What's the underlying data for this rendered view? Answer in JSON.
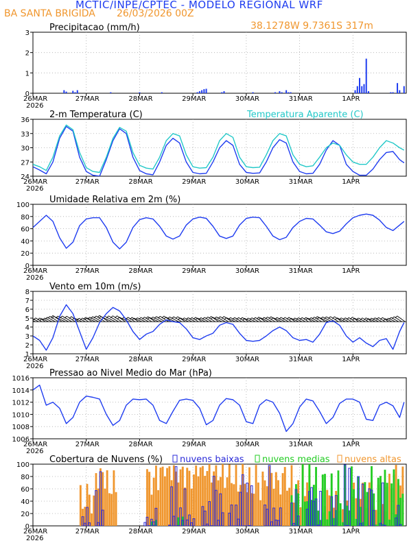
{
  "header": {
    "title": "MCTIC/INPE/CPTEC - MODELO REGIONAL WRF",
    "location": "BA SANTA BRIGIDA",
    "run": "26/03/2026 00Z",
    "coords": "38.1278W  9.7361S  317m"
  },
  "colors": {
    "line": "#1e3cf0",
    "apparent": "#22c8c8",
    "orange": "#f0962d",
    "green": "#22cc22",
    "low": "#2a2ad8",
    "grid": "#aaaaaa"
  },
  "x_axis": {
    "labels": [
      "26MAR",
      "27MAR",
      "28MAR",
      "29MAR",
      "30MAR",
      "31MAR",
      "1APR"
    ],
    "year": "2026",
    "hours": 168
  },
  "chart_data": [
    {
      "id": "precip",
      "type": "bar",
      "title": "Precipitacao (mm/h)",
      "ylim": [
        0,
        3
      ],
      "yticks": [
        0,
        1,
        2,
        3
      ],
      "hours": [
        14,
        15,
        18,
        19,
        20,
        35,
        48,
        58,
        74,
        75,
        76,
        77,
        78,
        85,
        86,
        99,
        109,
        111,
        112,
        114,
        115,
        116,
        145,
        146,
        147,
        148,
        149,
        150,
        151,
        161,
        162,
        164,
        165,
        167
      ],
      "values": [
        0.15,
        0.08,
        0.12,
        0.05,
        0.15,
        0.05,
        0.05,
        0.05,
        0.05,
        0.1,
        0.15,
        0.2,
        0.22,
        0.05,
        0.1,
        0.05,
        0.05,
        0.1,
        0.05,
        0.15,
        0.05,
        0.05,
        0.15,
        0.35,
        0.75,
        0.35,
        0.45,
        1.7,
        0.1,
        0.05,
        0.05,
        0.5,
        0.15,
        0.35
      ]
    },
    {
      "id": "temp",
      "type": "line",
      "title": "2-m Temperatura (C)",
      "legend_secondary": "Temperatura Aparente (C)",
      "ylim": [
        24,
        36
      ],
      "yticks": [
        24,
        27,
        30,
        33,
        36
      ],
      "series": [
        {
          "name": "2-m Temperatura (C)",
          "x": [
            0,
            3,
            6,
            9,
            12,
            15,
            18,
            21,
            24,
            27,
            30,
            33,
            36,
            39,
            42,
            45,
            48,
            51,
            54,
            57,
            60,
            63,
            66,
            69,
            72,
            75,
            78,
            81,
            84,
            87,
            90,
            93,
            96,
            99,
            102,
            105,
            108,
            111,
            114,
            117,
            120,
            123,
            126,
            129,
            132,
            135,
            138,
            141,
            144,
            147,
            150,
            153,
            156,
            159,
            162,
            165,
            167
          ],
          "values": [
            26,
            25.3,
            24.5,
            27,
            32,
            34.5,
            33.5,
            28,
            25,
            24.2,
            24,
            27.5,
            31.5,
            34,
            33,
            28,
            25.2,
            24.5,
            24.3,
            27,
            30.5,
            32,
            31,
            27,
            24.8,
            24.5,
            24.6,
            27,
            30,
            31.5,
            30.5,
            26.5,
            24.8,
            24.6,
            24.7,
            27,
            30,
            31.7,
            31,
            27,
            25,
            24.5,
            24.6,
            26.5,
            29.5,
            31.5,
            30.5,
            26.5,
            25,
            24.2,
            24.2,
            25.5,
            27.5,
            29,
            29.2,
            27.5,
            26.8
          ]
        },
        {
          "name": "Temperatura Aparente (C)",
          "x": [
            0,
            3,
            6,
            9,
            12,
            15,
            18,
            21,
            24,
            27,
            30,
            33,
            36,
            39,
            42,
            45,
            48,
            51,
            54,
            57,
            60,
            63,
            66,
            69,
            72,
            75,
            78,
            81,
            84,
            87,
            90,
            93,
            96,
            99,
            102,
            105,
            108,
            111,
            114,
            117,
            120,
            123,
            126,
            129,
            132,
            135,
            138,
            141,
            144,
            147,
            150,
            153,
            156,
            159,
            162,
            165,
            167
          ],
          "values": [
            26.5,
            26,
            25.2,
            28,
            32.5,
            34.8,
            33.8,
            29,
            25.8,
            25,
            24.8,
            28,
            32,
            34.3,
            33.5,
            29,
            26.3,
            25.7,
            25.5,
            28,
            31.5,
            33,
            32.5,
            28.5,
            26,
            25.7,
            25.8,
            28,
            31.5,
            33,
            32.2,
            28,
            26,
            25.8,
            25.9,
            28.5,
            31.5,
            33,
            32.5,
            28.5,
            26.5,
            26,
            26.2,
            28,
            30,
            31,
            30.5,
            28.5,
            27,
            26.5,
            26.5,
            28,
            30,
            31.5,
            31,
            30,
            29.5
          ]
        }
      ]
    },
    {
      "id": "humidity",
      "type": "line",
      "title": "Umidade Relativa em 2m (%)",
      "ylim": [
        0,
        100
      ],
      "yticks": [
        0,
        20,
        40,
        60,
        80,
        100
      ],
      "series": [
        {
          "name": "Umidade Relativa em 2m (%)",
          "x": [
            0,
            3,
            6,
            9,
            12,
            15,
            18,
            21,
            24,
            27,
            30,
            33,
            36,
            39,
            42,
            45,
            48,
            51,
            54,
            57,
            60,
            63,
            66,
            69,
            72,
            75,
            78,
            81,
            84,
            87,
            90,
            93,
            96,
            99,
            102,
            105,
            108,
            111,
            114,
            117,
            120,
            123,
            126,
            129,
            132,
            135,
            138,
            141,
            144,
            147,
            150,
            153,
            156,
            159,
            162,
            165,
            167
          ],
          "values": [
            62,
            72,
            82,
            72,
            45,
            28,
            38,
            65,
            76,
            78,
            78,
            62,
            38,
            27,
            38,
            62,
            75,
            78,
            76,
            64,
            48,
            43,
            48,
            66,
            76,
            79,
            77,
            64,
            48,
            44,
            48,
            66,
            77,
            79,
            78,
            64,
            48,
            42,
            46,
            62,
            72,
            77,
            76,
            66,
            55,
            52,
            56,
            68,
            78,
            82,
            84,
            82,
            74,
            62,
            57,
            66,
            72
          ]
        }
      ]
    },
    {
      "id": "wind",
      "type": "line",
      "title": "Vento em 10m (m/s)",
      "ylim": [
        1,
        8
      ],
      "yticks": [
        1,
        2,
        3,
        4,
        5,
        6,
        7,
        8
      ],
      "barbs_level": 4.6,
      "series": [
        {
          "name": "Vento em 10m (m/s)",
          "x": [
            0,
            3,
            6,
            9,
            12,
            15,
            18,
            21,
            24,
            27,
            30,
            33,
            36,
            39,
            42,
            45,
            48,
            51,
            54,
            57,
            60,
            63,
            66,
            69,
            72,
            75,
            78,
            81,
            84,
            87,
            90,
            93,
            96,
            99,
            102,
            105,
            108,
            111,
            114,
            117,
            120,
            123,
            126,
            129,
            132,
            135,
            138,
            141,
            144,
            147,
            150,
            153,
            156,
            159,
            162,
            165,
            167
          ],
          "values": [
            3,
            2.5,
            1.4,
            2.8,
            5.2,
            6.5,
            5.5,
            3.5,
            1.5,
            2.8,
            4.5,
            5.5,
            6.2,
            5.8,
            4.8,
            3.5,
            2.6,
            3.2,
            3.5,
            4.3,
            4.8,
            4.6,
            4.5,
            3.8,
            2.8,
            2.6,
            3,
            3.3,
            4.2,
            4.5,
            4.3,
            3.3,
            2.5,
            2.4,
            2.5,
            3,
            3.6,
            4,
            3.6,
            2.8,
            2.5,
            2.6,
            2.3,
            3.2,
            4.5,
            4.7,
            4.2,
            3,
            2.3,
            2.8,
            2.2,
            1.8,
            2.5,
            2.7,
            1.5,
            3.5,
            4.5
          ]
        }
      ]
    },
    {
      "id": "pressure",
      "type": "line",
      "title": "Pressao ao Nivel Medio do Mar (hPa)",
      "ylim": [
        1006,
        1016
      ],
      "yticks": [
        1006,
        1008,
        1010,
        1012,
        1014,
        1016
      ],
      "series": [
        {
          "name": "Pressao ao Nivel Medio do Mar (hPa)",
          "x": [
            0,
            3,
            6,
            9,
            12,
            15,
            18,
            21,
            24,
            27,
            30,
            33,
            36,
            39,
            42,
            45,
            48,
            51,
            54,
            57,
            60,
            63,
            66,
            69,
            72,
            75,
            78,
            81,
            84,
            87,
            90,
            93,
            96,
            99,
            102,
            105,
            108,
            111,
            114,
            117,
            120,
            123,
            126,
            129,
            132,
            135,
            138,
            141,
            144,
            147,
            150,
            153,
            156,
            159,
            162,
            165,
            167
          ],
          "values": [
            1014,
            1014.8,
            1011.5,
            1012,
            1011,
            1008.5,
            1009.5,
            1012,
            1013,
            1012.8,
            1012.5,
            1010,
            1008.2,
            1009,
            1011.5,
            1012.5,
            1012.4,
            1012.5,
            1011.5,
            1009,
            1008.5,
            1010.5,
            1012.3,
            1012.5,
            1012.3,
            1011,
            1008.3,
            1009,
            1011.5,
            1012.6,
            1012.4,
            1011.5,
            1008.8,
            1008.5,
            1011.5,
            1012.4,
            1012,
            1010.2,
            1007.2,
            1008.5,
            1011.2,
            1012.5,
            1012.2,
            1010.5,
            1008.5,
            1009.5,
            1011.8,
            1012.5,
            1012.5,
            1012,
            1009.2,
            1009,
            1011.5,
            1012,
            1011.4,
            1009.5,
            1012
          ]
        }
      ]
    },
    {
      "id": "clouds",
      "type": "bar",
      "title": "Cobertura de Nuvens (%)",
      "ylim": [
        0,
        100
      ],
      "yticks": [
        0,
        20,
        40,
        60,
        80,
        100
      ],
      "legend": [
        "nuvens baixas",
        "nuvens medias",
        "nuvens altas"
      ],
      "series": [
        {
          "name": "nuvens altas",
          "segments": [
            [
              21,
              28,
              20,
              70
            ],
            [
              28,
              33,
              60,
              100
            ],
            [
              33,
              38,
              40,
              90
            ],
            [
              51,
              57,
              50,
              100
            ],
            [
              57,
              62,
              80,
              100
            ],
            [
              62,
              68,
              70,
              100
            ],
            [
              68,
              74,
              60,
              100
            ],
            [
              74,
              80,
              80,
              100
            ],
            [
              80,
              86,
              70,
              100
            ],
            [
              86,
              92,
              60,
              100
            ],
            [
              92,
              98,
              50,
              100
            ],
            [
              98,
              104,
              40,
              100
            ],
            [
              104,
              110,
              60,
              100
            ],
            [
              110,
              117,
              50,
              100
            ],
            [
              117,
              121,
              30,
              80
            ],
            [
              121,
              125,
              40,
              100
            ],
            [
              130,
              140,
              20,
              60
            ],
            [
              140,
              150,
              20,
              70
            ],
            [
              150,
              160,
              20,
              80
            ],
            [
              160,
              167,
              60,
              100
            ]
          ]
        },
        {
          "name": "nuvens medias",
          "segments": [
            [
              53,
              56,
              0,
              10
            ],
            [
              65,
              68,
              0,
              15
            ],
            [
              116,
              121,
              0,
              80
            ],
            [
              121,
              126,
              20,
              100
            ],
            [
              126,
              134,
              0,
              100
            ],
            [
              134,
              140,
              0,
              90
            ],
            [
              140,
              146,
              10,
              100
            ],
            [
              146,
              152,
              0,
              80
            ],
            [
              152,
              158,
              0,
              100
            ],
            [
              158,
              164,
              10,
              100
            ],
            [
              164,
              167,
              20,
              90
            ]
          ]
        },
        {
          "name": "nuvens baixas",
          "segments": [
            [
              0,
              20,
              0,
              0
            ],
            [
              22,
              26,
              0,
              30
            ],
            [
              28,
              32,
              0,
              90
            ],
            [
              50,
              54,
              0,
              15
            ],
            [
              54,
              56,
              0,
              30
            ],
            [
              61,
              64,
              0,
              70
            ],
            [
              64,
              66,
              0,
              100
            ],
            [
              66,
              70,
              0,
              60
            ],
            [
              70,
              73,
              0,
              20
            ],
            [
              76,
              80,
              0,
              40
            ],
            [
              80,
              84,
              0,
              100
            ],
            [
              84,
              86,
              0,
              60
            ],
            [
              88,
              92,
              0,
              40
            ],
            [
              92,
              96,
              0,
              100
            ],
            [
              96,
              99,
              0,
              70
            ],
            [
              104,
              108,
              0,
              100
            ],
            [
              108,
              112,
              0,
              30
            ],
            [
              116,
              120,
              0,
              60
            ],
            [
              123,
              126,
              0,
              100
            ],
            [
              126,
              130,
              0,
              60
            ],
            [
              134,
              137,
              0,
              50
            ],
            [
              140,
              143,
              0,
              100
            ],
            [
              146,
              149,
              0,
              80
            ],
            [
              151,
              154,
              0,
              100
            ],
            [
              156,
              159,
              0,
              70
            ],
            [
              163,
              166,
              0,
              40
            ]
          ]
        }
      ]
    }
  ]
}
